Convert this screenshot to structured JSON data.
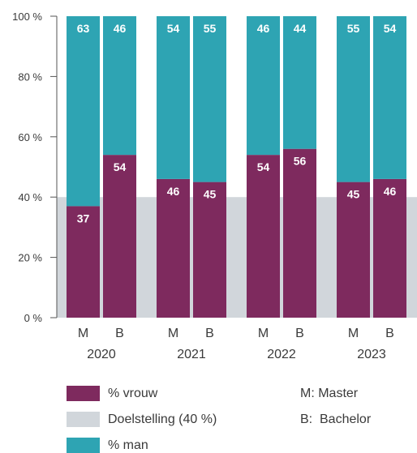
{
  "chart_data": {
    "type": "bar",
    "stacked": true,
    "groups": [
      "2020",
      "2021",
      "2022",
      "2023"
    ],
    "categories": [
      {
        "group": "2020",
        "label": "M"
      },
      {
        "group": "2020",
        "label": "B"
      },
      {
        "group": "2021",
        "label": "M"
      },
      {
        "group": "2021",
        "label": "B"
      },
      {
        "group": "2022",
        "label": "M"
      },
      {
        "group": "2022",
        "label": "B"
      },
      {
        "group": "2023",
        "label": "M"
      },
      {
        "group": "2023",
        "label": "B"
      }
    ],
    "series": [
      {
        "name": "% vrouw",
        "color": "#7e2a5e",
        "values": [
          37,
          54,
          46,
          45,
          54,
          56,
          45,
          46
        ]
      },
      {
        "name": "% man",
        "color": "#2ea4b3",
        "values": [
          63,
          46,
          54,
          55,
          46,
          44,
          55,
          54
        ]
      }
    ],
    "target": {
      "name": "Doelstelling (40 %)",
      "value": 40,
      "color": "#d1d6db"
    },
    "yticks": [
      "0 %",
      "20 %",
      "40 %",
      "60 %",
      "80 %",
      "100 %"
    ],
    "ylim": [
      0,
      100
    ],
    "grid": false,
    "legend_position": "bottom-left"
  },
  "legend_notes": [
    "M: Master",
    "B:  Bachelor"
  ]
}
